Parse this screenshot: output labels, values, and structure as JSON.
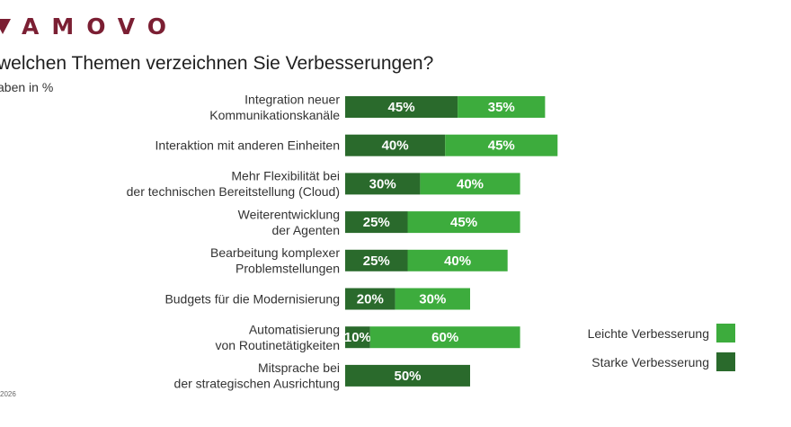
{
  "brand": {
    "logo_text": "AMOVO",
    "color": "#7b1f33"
  },
  "header": {
    "title": "welchen Themen verzeichnen Sie Verbesserungen?",
    "subtitle": "aben in %"
  },
  "footer": {
    "note": "2026"
  },
  "colors": {
    "starke": "#2a6a2c",
    "leichte": "#3dac3d"
  },
  "legend": {
    "items": [
      {
        "label": "Leichte Verbesserung",
        "series": "leichte"
      },
      {
        "label": "Starke Verbesserung",
        "series": "starke"
      }
    ]
  },
  "chart_data": {
    "type": "bar",
    "orientation": "horizontal",
    "stacked": true,
    "title": "welchen Themen verzeichnen Sie Verbesserungen?",
    "subtitle": "aben in %",
    "categories": [
      [
        "Integration neuer",
        "Kommunikationskanäle"
      ],
      [
        "Interaktion mit anderen Einheiten"
      ],
      [
        "Mehr Flexibilität bei",
        "der technischen Bereitstellung (Cloud)"
      ],
      [
        "Weiterentwicklung",
        "der Agenten"
      ],
      [
        "Bearbeitung komplexer",
        "Problemstellungen"
      ],
      [
        "Budgets für die Modernisierung"
      ],
      [
        "Automatisierung",
        "von Routinetätigkeiten"
      ],
      [
        "Mitsprache bei",
        "der strategischen Ausrichtung"
      ]
    ],
    "series": [
      {
        "name": "Starke Verbesserung",
        "key": "starke",
        "values": [
          45,
          40,
          30,
          25,
          25,
          20,
          10,
          50
        ]
      },
      {
        "name": "Leichte Verbesserung",
        "key": "leichte",
        "values": [
          35,
          45,
          40,
          45,
          40,
          30,
          60,
          0
        ]
      }
    ],
    "value_suffix": "%",
    "legend_position": "bottom-right",
    "grid": false
  }
}
